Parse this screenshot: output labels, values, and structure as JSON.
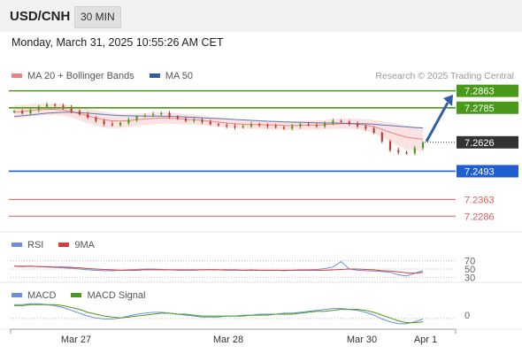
{
  "header": {
    "symbol": "USD/CNH",
    "timeframe": "30 MIN"
  },
  "datetime": "Monday, March 31, 2025 10:55:26 AM CET",
  "legend": {
    "bb_label": "MA 20 + Bollinger Bands",
    "ma50_label": "MA 50",
    "credit": "Research © 2025 Trading Central",
    "rsi_label": "RSI",
    "rsi_ma_label": "9MA",
    "macd_label": "MACD",
    "macd_signal_label": "MACD Signal"
  },
  "colors": {
    "bollinger": "#f08080",
    "ma50": "#2e5fa8",
    "resistance": "#4a9a1a",
    "pivot": "#1f5fd0",
    "support": "#e05a5a",
    "current_price_tag": "#333333",
    "up_candle": "#4a9a1a",
    "down_candle": "#c0392b",
    "rsi": "#6a8fd8",
    "rsi_ma": "#d04040",
    "macd": "#6a8fd8",
    "macd_signal": "#4a9a1a"
  },
  "chart_data": [
    {
      "type": "candlestick",
      "title": "USD/CNH",
      "timeframe": "30 MIN",
      "x_ticks": [
        "Mar 27",
        "Mar 28",
        "Mar 30",
        "Apr 1"
      ],
      "ylim": [
        7.223,
        7.289
      ],
      "current_price": "7.2626",
      "levels": [
        {
          "value": "7.2863",
          "kind": "resistance"
        },
        {
          "value": "7.2785",
          "kind": "resistance"
        },
        {
          "value": "7.2493",
          "kind": "pivot"
        },
        {
          "value": "7.2363",
          "kind": "support"
        },
        {
          "value": "7.2286",
          "kind": "support"
        }
      ],
      "target_arrow": {
        "from": 7.263,
        "to": 7.2845
      },
      "close_series": [
        7.277,
        7.276,
        7.2775,
        7.279,
        7.28,
        7.2795,
        7.2785,
        7.277,
        7.2755,
        7.274,
        7.2725,
        7.271,
        7.2705,
        7.2715,
        7.273,
        7.2745,
        7.275,
        7.2755,
        7.276,
        7.2745,
        7.2735,
        7.2725,
        7.273,
        7.272,
        7.271,
        7.2705,
        7.27,
        7.2695,
        7.27,
        7.271,
        7.2705,
        7.27,
        7.2695,
        7.269,
        7.27,
        7.271,
        7.2705,
        7.27,
        7.2715,
        7.2725,
        7.272,
        7.271,
        7.27,
        7.269,
        7.267,
        7.263,
        7.259,
        7.258,
        7.2575,
        7.26,
        7.2626
      ],
      "ma20": [
        7.2765,
        7.2768,
        7.2772,
        7.2776,
        7.2778,
        7.2778,
        7.2775,
        7.2768,
        7.2758,
        7.2748,
        7.2738,
        7.273,
        7.2725,
        7.2724,
        7.2726,
        7.273,
        7.2733,
        7.2736,
        7.2738,
        7.2737,
        7.2735,
        7.2732,
        7.273,
        7.2727,
        7.2723,
        7.2719,
        7.2715,
        7.2711,
        7.2709,
        7.2708,
        7.2707,
        7.2706,
        7.2705,
        7.2703,
        7.2703,
        7.2704,
        7.2705,
        7.2705,
        7.2707,
        7.271,
        7.2712,
        7.2712,
        7.271,
        7.2706,
        7.2698,
        7.2686,
        7.2672,
        7.266,
        7.265,
        7.2644,
        7.264
      ],
      "ma50": [
        7.2745,
        7.2748,
        7.2752,
        7.2756,
        7.276,
        7.2762,
        7.2764,
        7.2764,
        7.2762,
        7.276,
        7.2757,
        7.2754,
        7.2751,
        7.2749,
        7.2748,
        7.2747,
        7.2747,
        7.2746,
        7.2746,
        7.2745,
        7.2744,
        7.2742,
        7.2741,
        7.2739,
        7.2737,
        7.2735,
        7.2733,
        7.2731,
        7.2729,
        7.2727,
        7.2725,
        7.2723,
        7.2722,
        7.272,
        7.2719,
        7.2718,
        7.2717,
        7.2716,
        7.2715,
        7.2715,
        7.2714,
        7.2713,
        7.2712,
        7.2711,
        7.2709,
        7.2706,
        7.2703,
        7.27,
        7.2697,
        7.2694,
        7.2692
      ],
      "bb_halfwidth": [
        0.003,
        0.003,
        0.0029,
        0.0028,
        0.0027,
        0.0026,
        0.0026,
        0.0028,
        0.0031,
        0.0034,
        0.0036,
        0.0037,
        0.0036,
        0.0033,
        0.003,
        0.0028,
        0.0027,
        0.0027,
        0.0027,
        0.0026,
        0.0025,
        0.0024,
        0.0023,
        0.0022,
        0.0022,
        0.0021,
        0.0021,
        0.0021,
        0.0021,
        0.002,
        0.002,
        0.002,
        0.002,
        0.002,
        0.002,
        0.0021,
        0.0021,
        0.0021,
        0.0022,
        0.0023,
        0.0023,
        0.0024,
        0.0025,
        0.0027,
        0.0031,
        0.0038,
        0.0046,
        0.0051,
        0.0054,
        0.0055,
        0.0055
      ]
    },
    {
      "type": "line",
      "title": "RSI",
      "levels": [
        "70",
        "50",
        "30"
      ],
      "ylim": [
        20,
        80
      ],
      "series": [
        {
          "name": "RSI",
          "values": [
            57,
            56,
            57,
            56,
            55,
            54,
            53,
            52,
            50,
            48,
            47,
            46,
            46,
            47,
            48,
            49,
            50,
            50,
            49,
            48,
            47,
            47,
            47,
            48,
            49,
            48,
            47,
            47,
            47,
            48,
            47,
            47,
            47,
            46,
            47,
            48,
            48,
            49,
            51,
            55,
            68,
            50,
            47,
            46,
            45,
            44,
            42,
            36,
            33,
            40,
            46
          ]
        },
        {
          "name": "9MA",
          "values": [
            57,
            57,
            57,
            56,
            56,
            55,
            55,
            54,
            53,
            51,
            50,
            49,
            48,
            47,
            47,
            47,
            48,
            48,
            48,
            48,
            48,
            48,
            48,
            48,
            48,
            48,
            48,
            48,
            47,
            47,
            47,
            47,
            47,
            47,
            47,
            47,
            47,
            47,
            47,
            48,
            49,
            50,
            50,
            49,
            48,
            46,
            45,
            43,
            41,
            40,
            42
          ]
        }
      ]
    },
    {
      "type": "line",
      "title": "MACD",
      "zero_label": "0",
      "ylim": [
        -0.0016,
        0.0012
      ],
      "series": [
        {
          "name": "MACD",
          "values": [
            0.0008,
            0.0008,
            0.0009,
            0.0009,
            0.0008,
            0.0007,
            0.0005,
            0.0002,
            -0.0001,
            -0.0004,
            -0.0006,
            -0.0007,
            -0.0007,
            -0.0006,
            -0.0004,
            -0.0002,
            -0.0001,
            0.0,
            0.0,
            -0.0001,
            -0.0002,
            -0.0003,
            -0.0004,
            -0.0005,
            -0.0005,
            -0.0005,
            -0.0004,
            -0.0004,
            -0.0003,
            -0.0003,
            -0.0002,
            -0.0002,
            -0.0002,
            -0.0001,
            -0.0001,
            0.0,
            0.0001,
            0.0002,
            0.0003,
            0.0004,
            0.0004,
            0.0003,
            0.0002,
            0.0,
            -0.0003,
            -0.0007,
            -0.001,
            -0.0012,
            -0.0012,
            -0.001,
            -0.0007
          ]
        },
        {
          "name": "MACD Signal",
          "values": [
            0.0007,
            0.0007,
            0.0008,
            0.0008,
            0.0008,
            0.0008,
            0.0007,
            0.0005,
            0.0003,
            0.0,
            -0.0002,
            -0.0004,
            -0.0005,
            -0.0006,
            -0.0005,
            -0.0004,
            -0.0003,
            -0.0002,
            -0.0001,
            -0.0001,
            -0.0002,
            -0.0002,
            -0.0003,
            -0.0004,
            -0.0004,
            -0.0004,
            -0.0004,
            -0.0004,
            -0.0004,
            -0.0003,
            -0.0003,
            -0.0003,
            -0.0002,
            -0.0002,
            -0.0002,
            -0.0001,
            0.0,
            0.0001,
            0.0001,
            0.0002,
            0.0003,
            0.0003,
            0.0003,
            0.0002,
            0.0,
            -0.0003,
            -0.0006,
            -0.0009,
            -0.0011,
            -0.0011,
            -0.001
          ]
        }
      ]
    }
  ]
}
